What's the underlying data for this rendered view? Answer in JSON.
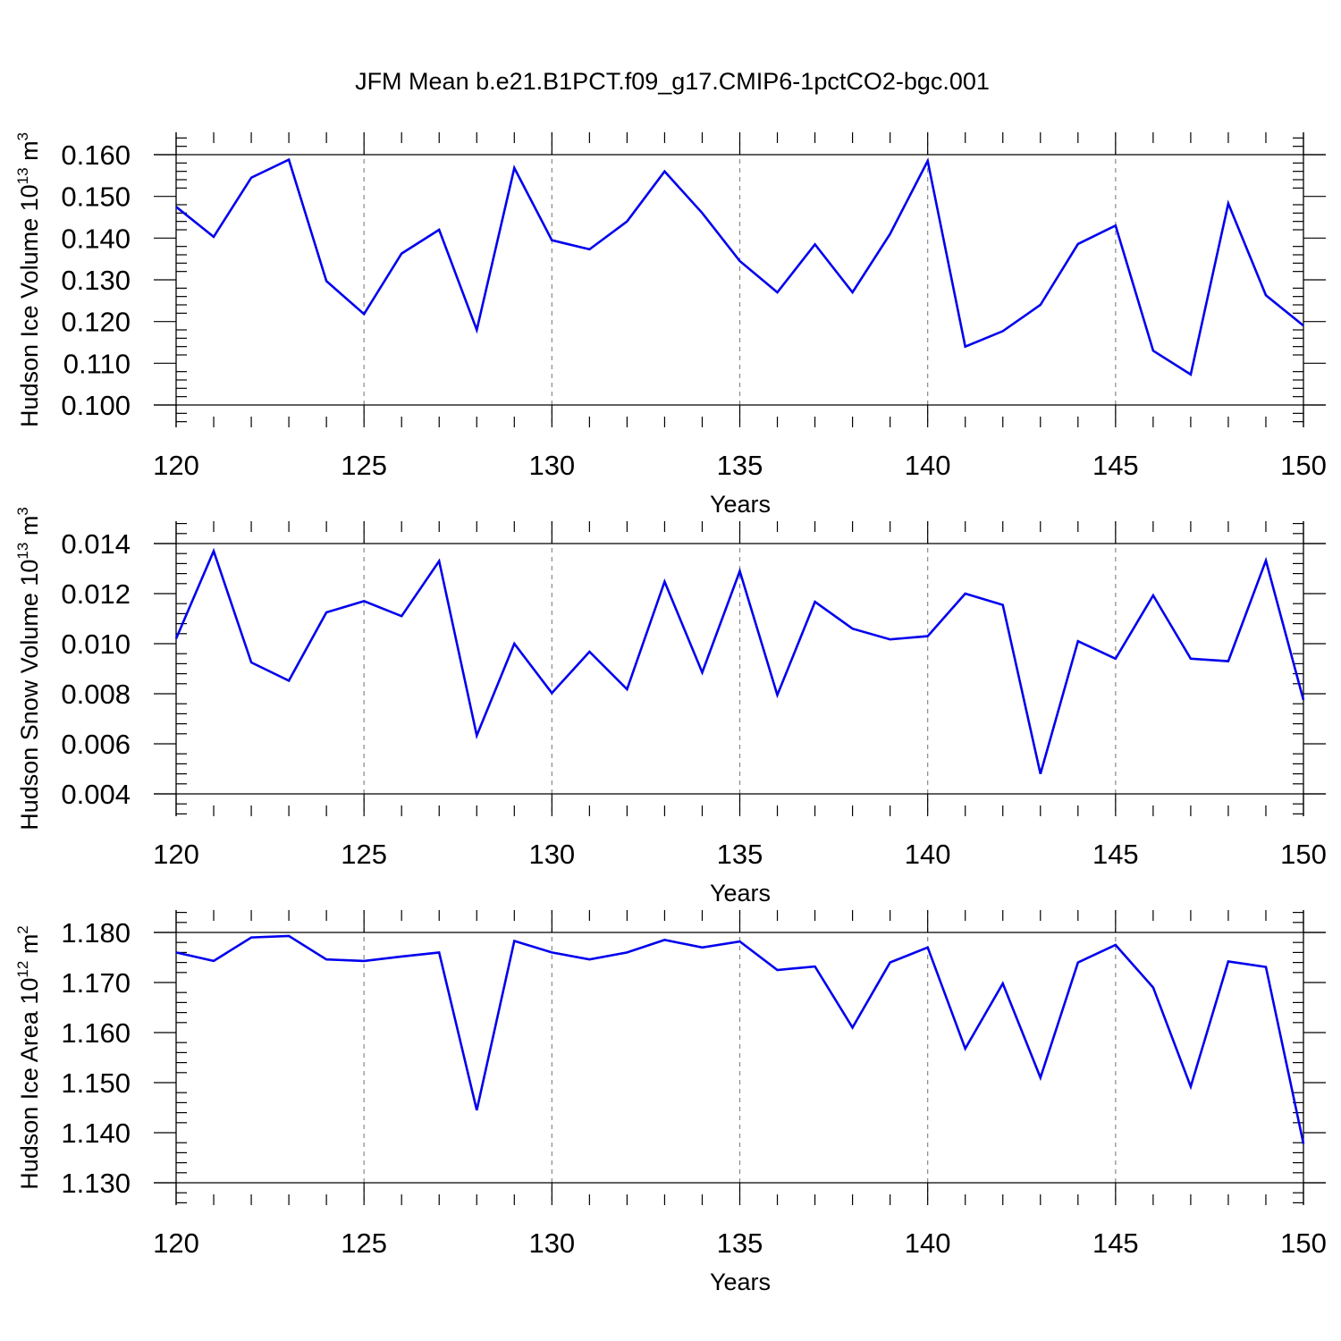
{
  "title": "JFM Mean b.e21.B1PCT.f09_g17.CMIP6-1pctCO2-bgc.001",
  "colors": {
    "series": "#0000ee",
    "axes": "#000000",
    "grid": "#888888"
  },
  "chart_data": [
    {
      "type": "line",
      "ylabel": {
        "prefix": "Hudson Ice Volume 10",
        "exp": "13",
        "unit": " m",
        "unit_exp": "3"
      },
      "xlabel": "Years",
      "xlim": [
        120,
        150
      ],
      "ylim": [
        0.1,
        0.16
      ],
      "x_ticks": [
        "120",
        "125",
        "130",
        "135",
        "140",
        "145",
        "150"
      ],
      "y_ticks": [
        "0.100",
        "0.110",
        "0.120",
        "0.130",
        "0.140",
        "0.150",
        "0.160"
      ],
      "grid": "vertical dashed at major x ticks",
      "x": [
        120,
        121,
        122,
        123,
        124,
        125,
        126,
        127,
        128,
        129,
        130,
        131,
        132,
        133,
        134,
        135,
        136,
        137,
        138,
        139,
        140,
        141,
        142,
        143,
        144,
        145,
        146,
        147,
        148,
        149,
        150
      ],
      "values": [
        0.1475,
        0.1403,
        0.1545,
        0.1588,
        0.1297,
        0.1218,
        0.1363,
        0.142,
        0.118,
        0.1568,
        0.1395,
        0.1373,
        0.144,
        0.156,
        0.146,
        0.1345,
        0.127,
        0.1385,
        0.127,
        0.141,
        0.1585,
        0.114,
        0.1177,
        0.124,
        0.1386,
        0.143,
        0.113,
        0.1073,
        0.1483,
        0.1263,
        0.119
      ]
    },
    {
      "type": "line",
      "ylabel": {
        "prefix": "Hudson Snow Volume 10",
        "exp": "13",
        "unit": " m",
        "unit_exp": "3"
      },
      "xlabel": "Years",
      "xlim": [
        120,
        150
      ],
      "ylim": [
        0.004,
        0.014
      ],
      "x_ticks": [
        "120",
        "125",
        "130",
        "135",
        "140",
        "145",
        "150"
      ],
      "y_ticks": [
        "0.004",
        "0.006",
        "0.008",
        "0.010",
        "0.012",
        "0.014"
      ],
      "grid": "vertical dashed at major x ticks",
      "x": [
        120,
        121,
        122,
        123,
        124,
        125,
        126,
        127,
        128,
        129,
        130,
        131,
        132,
        133,
        134,
        135,
        136,
        137,
        138,
        139,
        140,
        141,
        142,
        143,
        144,
        145,
        146,
        147,
        148,
        149,
        150
      ],
      "values": [
        0.0102,
        0.0137,
        0.00925,
        0.00852,
        0.01125,
        0.0117,
        0.0111,
        0.0133,
        0.00633,
        0.01,
        0.00803,
        0.00968,
        0.00818,
        0.01248,
        0.00885,
        0.0129,
        0.00795,
        0.01167,
        0.0106,
        0.01017,
        0.0103,
        0.012,
        0.01155,
        0.0048,
        0.0101,
        0.0094,
        0.01193,
        0.0094,
        0.0093,
        0.01332,
        0.00775
      ]
    },
    {
      "type": "line",
      "ylabel": {
        "prefix": "Hudson Ice Area 10",
        "exp": "12",
        "unit": " m",
        "unit_exp": "2"
      },
      "xlabel": "Years",
      "xlim": [
        120,
        150
      ],
      "ylim": [
        1.13,
        1.18
      ],
      "x_ticks": [
        "120",
        "125",
        "130",
        "135",
        "140",
        "145",
        "150"
      ],
      "y_ticks": [
        "1.130",
        "1.140",
        "1.150",
        "1.160",
        "1.170",
        "1.180"
      ],
      "grid": "vertical dashed at major x ticks",
      "x": [
        120,
        121,
        122,
        123,
        124,
        125,
        126,
        127,
        128,
        129,
        130,
        131,
        132,
        133,
        134,
        135,
        136,
        137,
        138,
        139,
        140,
        141,
        142,
        143,
        144,
        145,
        146,
        147,
        148,
        149,
        150
      ],
      "values": [
        1.176,
        1.1743,
        1.179,
        1.1793,
        1.1746,
        1.1743,
        1.1752,
        1.176,
        1.1445,
        1.1783,
        1.176,
        1.1746,
        1.176,
        1.1785,
        1.177,
        1.1782,
        1.1725,
        1.1732,
        1.161,
        1.174,
        1.177,
        1.1568,
        1.1698,
        1.151,
        1.174,
        1.1775,
        1.169,
        1.1492,
        1.1742,
        1.1731,
        1.1378
      ]
    }
  ]
}
